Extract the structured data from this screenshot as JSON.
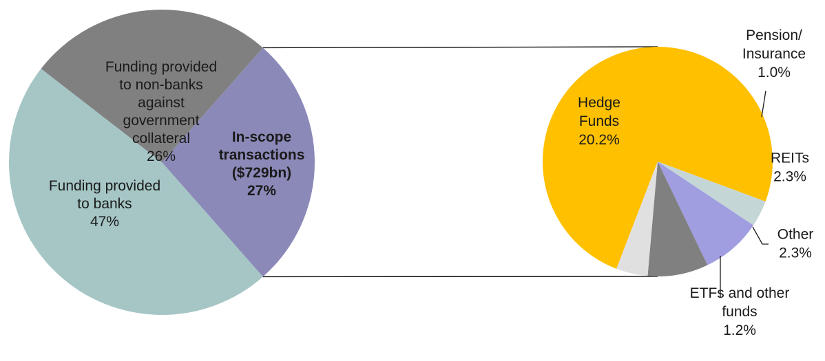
{
  "chart_data": [
    {
      "type": "pie",
      "slices": [
        {
          "label_lines": [
            "In-scope",
            "transactions",
            "($729bn)",
            "27%"
          ],
          "value": 27,
          "color": "#8b89b8",
          "bold": true
        },
        {
          "label_lines": [
            "Funding provided",
            "to banks",
            "47%"
          ],
          "value": 47,
          "color": "#a6c6c6",
          "bold": false
        },
        {
          "label_lines": [
            "Funding provided",
            "to non-banks",
            "against",
            "government",
            "collateral",
            "26%"
          ],
          "value": 26,
          "color": "#808080",
          "bold": false
        }
      ]
    },
    {
      "type": "pie",
      "slices": [
        {
          "label_lines": [
            "Hedge",
            "Funds",
            "20.2%"
          ],
          "value": 20.2,
          "color": "#ffc000"
        },
        {
          "label_lines": [
            "Pension/",
            "Insurance",
            "1.0%"
          ],
          "value": 1.0,
          "color": "#c5d6d6"
        },
        {
          "label_lines": [
            "REITs",
            "2.3%"
          ],
          "value": 2.3,
          "color": "#a09de0"
        },
        {
          "label_lines": [
            "Other",
            "2.3%"
          ],
          "value": 2.3,
          "color": "#808080"
        },
        {
          "label_lines": [
            "ETFs and other",
            "funds",
            "1.2%"
          ],
          "value": 1.2,
          "color": "#e0e0e0"
        }
      ]
    }
  ]
}
